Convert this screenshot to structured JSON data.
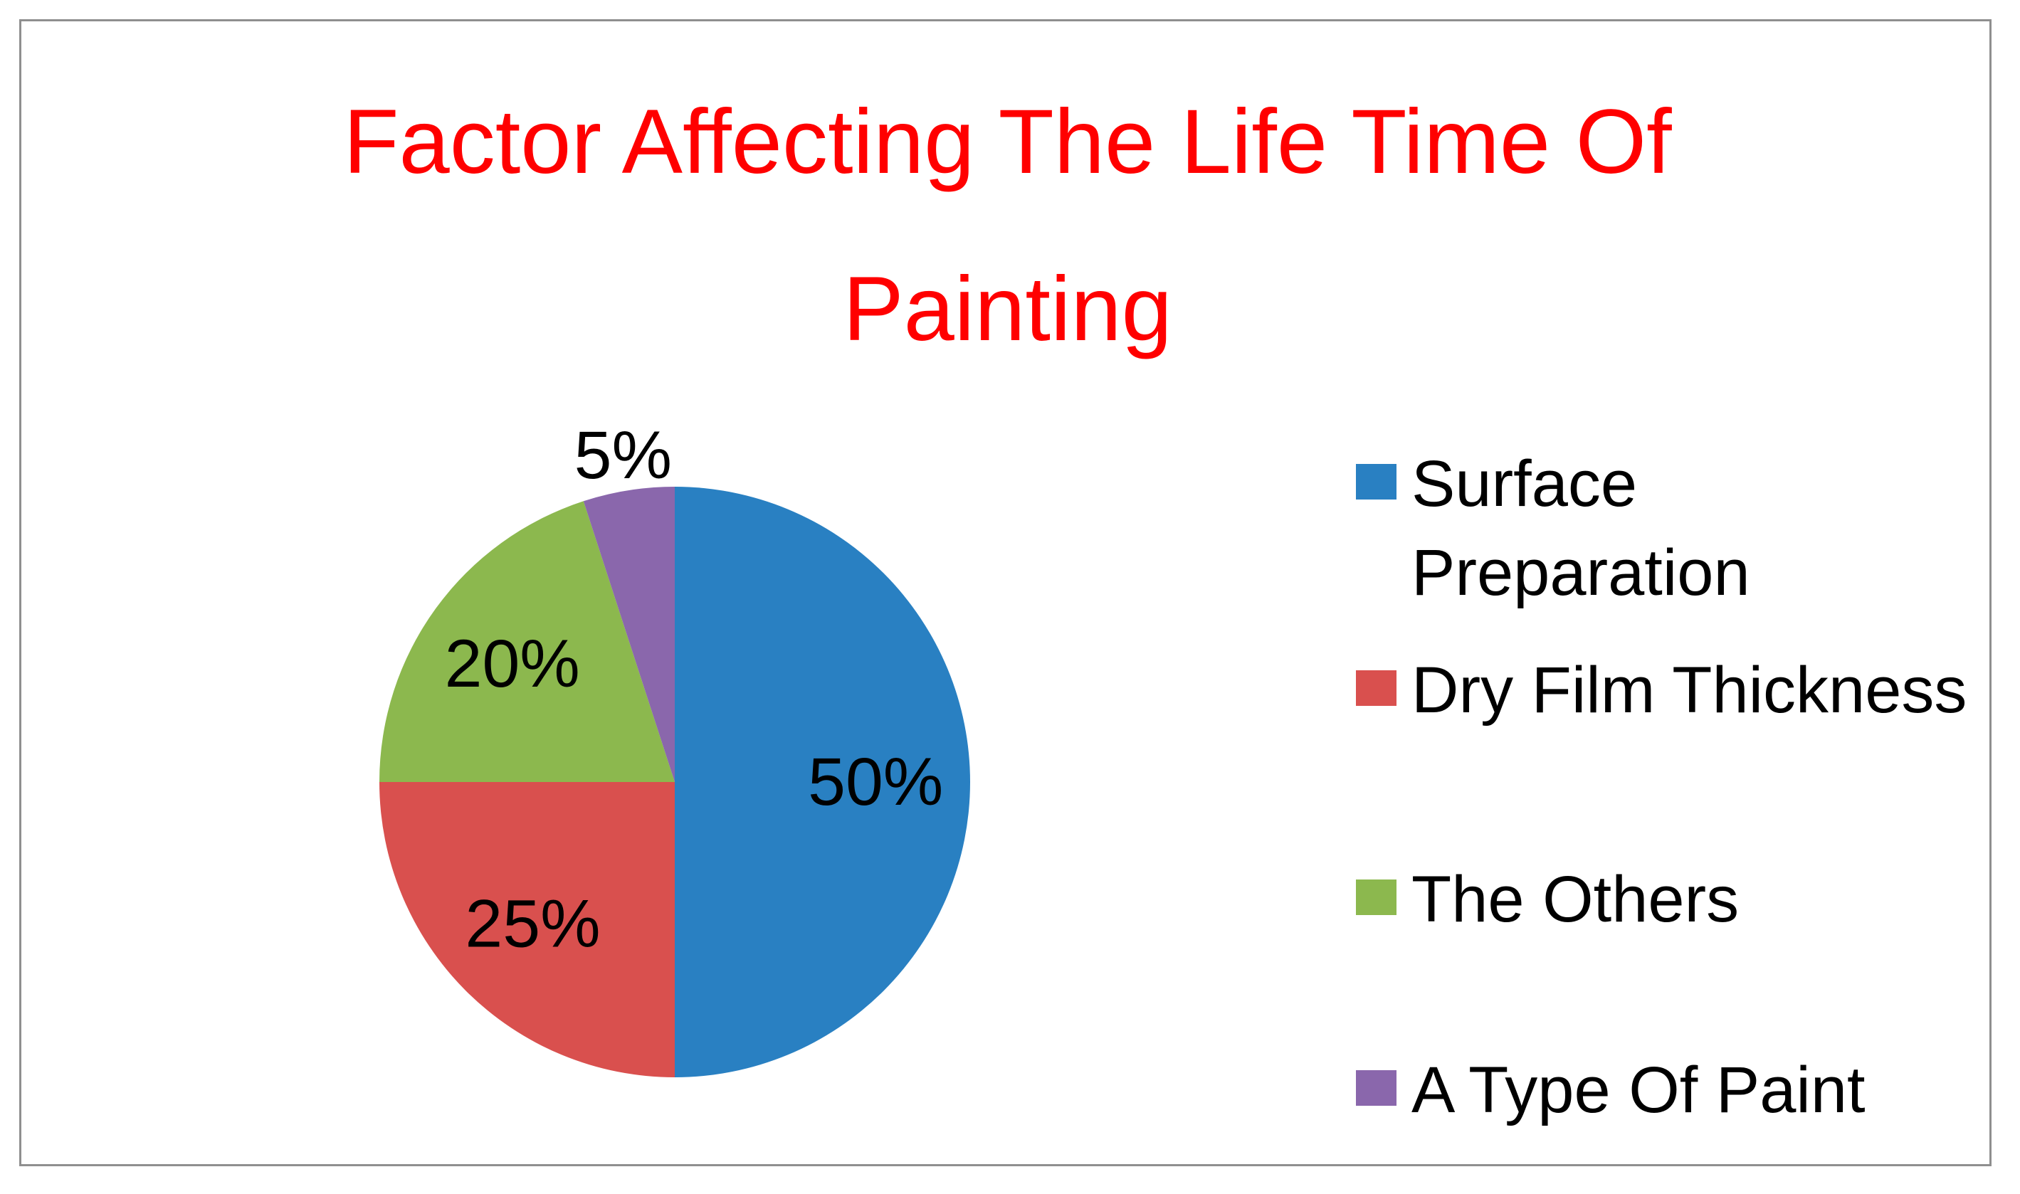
{
  "title": {
    "line1": "Factor Affecting The Life Time Of",
    "line2": "Painting",
    "color": "#ff0000"
  },
  "chart_data": {
    "type": "pie",
    "title": "Factor Affecting The Life Time Of Painting",
    "slices": [
      {
        "label": "Surface Preparation",
        "value": 50,
        "display_label": "50%",
        "color": "#2980c2"
      },
      {
        "label": "Dry Film Thickness",
        "value": 25,
        "display_label": "25%",
        "color": "#d9504e"
      },
      {
        "label": "The Others",
        "value": 20,
        "display_label": "20%",
        "color": "#8cb84e"
      },
      {
        "label": "A Type Of Paint",
        "value": 5,
        "display_label": "5%",
        "color": "#8a67ac"
      }
    ],
    "start_angle_deg": 0,
    "direction": "clockwise",
    "data_label_format": "percent",
    "data_label_color": "#000000",
    "legend_position": "right",
    "title_color": "#ff0000",
    "frame_border_color": "#8f8f8f",
    "background_color": "#ffffff"
  }
}
